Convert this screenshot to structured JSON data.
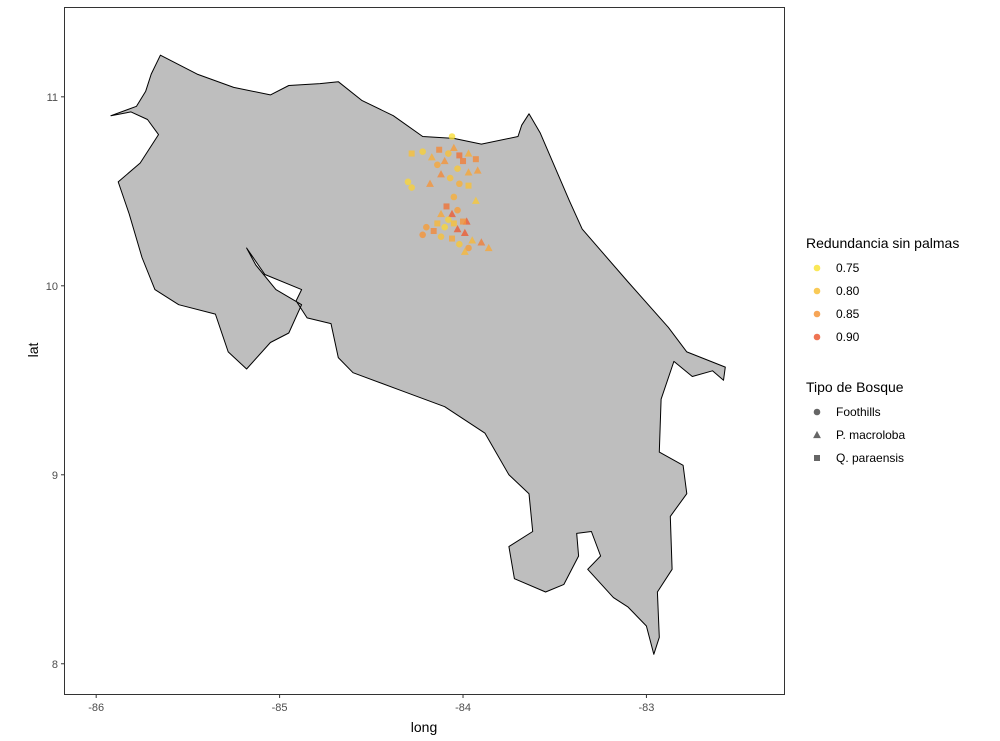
{
  "chart_data": {
    "type": "scatter",
    "xlabel": "long",
    "ylabel": "lat",
    "xlim": [
      -86.17,
      -82.25
    ],
    "ylim": [
      7.84,
      11.47
    ],
    "x_ticks": [
      -86,
      -85,
      -84,
      -83
    ],
    "x_tick_labels": [
      "-86",
      "-85",
      "-84",
      "-83"
    ],
    "y_ticks": [
      8,
      9,
      10,
      11
    ],
    "y_tick_labels": [
      "8",
      "9",
      "10",
      "11"
    ],
    "grid": false,
    "legend_position": "right",
    "map_fill": "#bebebe",
    "map_outline": "#000000",
    "map_outline_lonlat": [
      [
        -85.65,
        11.22
      ],
      [
        -85.45,
        11.12
      ],
      [
        -85.25,
        11.05
      ],
      [
        -85.05,
        11.01
      ],
      [
        -84.95,
        11.06
      ],
      [
        -84.78,
        11.07
      ],
      [
        -84.68,
        11.08
      ],
      [
        -84.55,
        10.98
      ],
      [
        -84.38,
        10.9
      ],
      [
        -84.22,
        10.79
      ],
      [
        -84.05,
        10.78
      ],
      [
        -83.9,
        10.75
      ],
      [
        -83.7,
        10.79
      ],
      [
        -83.68,
        10.85
      ],
      [
        -83.64,
        10.91
      ],
      [
        -83.58,
        10.81
      ],
      [
        -83.42,
        10.45
      ],
      [
        -83.35,
        10.3
      ],
      [
        -83.1,
        10.02
      ],
      [
        -82.88,
        9.78
      ],
      [
        -82.78,
        9.65
      ],
      [
        -82.57,
        9.57
      ],
      [
        -82.58,
        9.5
      ],
      [
        -82.64,
        9.55
      ],
      [
        -82.75,
        9.52
      ],
      [
        -82.85,
        9.6
      ],
      [
        -82.92,
        9.4
      ],
      [
        -82.93,
        9.12
      ],
      [
        -82.8,
        9.05
      ],
      [
        -82.78,
        8.9
      ],
      [
        -82.87,
        8.78
      ],
      [
        -82.86,
        8.5
      ],
      [
        -82.94,
        8.38
      ],
      [
        -82.93,
        8.14
      ],
      [
        -82.96,
        8.05
      ],
      [
        -83.0,
        8.2
      ],
      [
        -83.1,
        8.3
      ],
      [
        -83.18,
        8.35
      ],
      [
        -83.32,
        8.5
      ],
      [
        -83.25,
        8.57
      ],
      [
        -83.3,
        8.7
      ],
      [
        -83.38,
        8.69
      ],
      [
        -83.37,
        8.57
      ],
      [
        -83.45,
        8.42
      ],
      [
        -83.55,
        8.38
      ],
      [
        -83.72,
        8.45
      ],
      [
        -83.75,
        8.62
      ],
      [
        -83.62,
        8.7
      ],
      [
        -83.64,
        8.9
      ],
      [
        -83.75,
        9.0
      ],
      [
        -83.88,
        9.22
      ],
      [
        -84.1,
        9.36
      ],
      [
        -84.35,
        9.45
      ],
      [
        -84.6,
        9.54
      ],
      [
        -84.68,
        9.62
      ],
      [
        -84.72,
        9.8
      ],
      [
        -84.85,
        9.83
      ],
      [
        -84.91,
        9.92
      ],
      [
        -84.88,
        9.98
      ],
      [
        -85.08,
        10.06
      ],
      [
        -85.18,
        10.2
      ],
      [
        -85.13,
        10.11
      ],
      [
        -85.02,
        9.98
      ],
      [
        -84.88,
        9.9
      ],
      [
        -84.95,
        9.75
      ],
      [
        -85.05,
        9.7
      ],
      [
        -85.18,
        9.56
      ],
      [
        -85.28,
        9.65
      ],
      [
        -85.35,
        9.85
      ],
      [
        -85.55,
        9.9
      ],
      [
        -85.68,
        9.98
      ],
      [
        -85.75,
        10.15
      ],
      [
        -85.82,
        10.38
      ],
      [
        -85.88,
        10.55
      ],
      [
        -85.76,
        10.65
      ],
      [
        -85.66,
        10.8
      ],
      [
        -85.72,
        10.88
      ],
      [
        -85.81,
        10.92
      ],
      [
        -85.92,
        10.9
      ],
      [
        -85.78,
        10.95
      ],
      [
        -85.73,
        11.03
      ],
      [
        -85.7,
        11.12
      ],
      [
        -85.65,
        11.22
      ]
    ],
    "legend_color": {
      "title": "Redundancia sin palmas",
      "entries": [
        {
          "label": "0.75",
          "value": 0.75,
          "color": "#f9e43a"
        },
        {
          "label": "0.80",
          "value": 0.8,
          "color": "#f8c13a"
        },
        {
          "label": "0.85",
          "value": 0.85,
          "color": "#f5953a"
        },
        {
          "label": "0.90",
          "value": 0.9,
          "color": "#ec5c35"
        }
      ]
    },
    "legend_shape": {
      "title": "Tipo de Bosque",
      "entries": [
        {
          "label": "Foothills",
          "shape": "circle"
        },
        {
          "label": "P. macroloba",
          "shape": "triangle"
        },
        {
          "label": "Q. paraensis",
          "shape": "square"
        }
      ]
    },
    "points": [
      {
        "x": -84.28,
        "y": 10.7,
        "value": 0.8,
        "shape": "square"
      },
      {
        "x": -84.22,
        "y": 10.71,
        "value": 0.78,
        "shape": "circle"
      },
      {
        "x": -84.17,
        "y": 10.68,
        "value": 0.82,
        "shape": "triangle"
      },
      {
        "x": -84.13,
        "y": 10.72,
        "value": 0.86,
        "shape": "square"
      },
      {
        "x": -84.08,
        "y": 10.7,
        "value": 0.8,
        "shape": "circle"
      },
      {
        "x": -84.05,
        "y": 10.73,
        "value": 0.84,
        "shape": "triangle"
      },
      {
        "x": -84.02,
        "y": 10.69,
        "value": 0.88,
        "shape": "square"
      },
      {
        "x": -84.06,
        "y": 10.79,
        "value": 0.76,
        "shape": "circle"
      },
      {
        "x": -84.1,
        "y": 10.66,
        "value": 0.85,
        "shape": "triangle"
      },
      {
        "x": -84.0,
        "y": 10.66,
        "value": 0.87,
        "shape": "square"
      },
      {
        "x": -84.14,
        "y": 10.64,
        "value": 0.83,
        "shape": "circle"
      },
      {
        "x": -83.97,
        "y": 10.7,
        "value": 0.82,
        "shape": "triangle"
      },
      {
        "x": -83.93,
        "y": 10.67,
        "value": 0.86,
        "shape": "square"
      },
      {
        "x": -84.03,
        "y": 10.62,
        "value": 0.79,
        "shape": "circle"
      },
      {
        "x": -84.12,
        "y": 10.59,
        "value": 0.86,
        "shape": "triangle"
      },
      {
        "x": -83.97,
        "y": 10.6,
        "value": 0.83,
        "shape": "triangle"
      },
      {
        "x": -83.92,
        "y": 10.61,
        "value": 0.84,
        "shape": "triangle"
      },
      {
        "x": -84.07,
        "y": 10.57,
        "value": 0.8,
        "shape": "circle"
      },
      {
        "x": -84.18,
        "y": 10.54,
        "value": 0.85,
        "shape": "triangle"
      },
      {
        "x": -84.3,
        "y": 10.55,
        "value": 0.77,
        "shape": "circle"
      },
      {
        "x": -84.28,
        "y": 10.52,
        "value": 0.78,
        "shape": "circle"
      },
      {
        "x": -84.02,
        "y": 10.54,
        "value": 0.82,
        "shape": "circle"
      },
      {
        "x": -83.97,
        "y": 10.53,
        "value": 0.8,
        "shape": "square"
      },
      {
        "x": -84.05,
        "y": 10.47,
        "value": 0.82,
        "shape": "circle"
      },
      {
        "x": -83.93,
        "y": 10.45,
        "value": 0.79,
        "shape": "triangle"
      },
      {
        "x": -84.09,
        "y": 10.42,
        "value": 0.88,
        "shape": "square"
      },
      {
        "x": -84.06,
        "y": 10.38,
        "value": 0.91,
        "shape": "triangle"
      },
      {
        "x": -84.03,
        "y": 10.4,
        "value": 0.84,
        "shape": "circle"
      },
      {
        "x": -84.12,
        "y": 10.38,
        "value": 0.83,
        "shape": "triangle"
      },
      {
        "x": -84.08,
        "y": 10.35,
        "value": 0.78,
        "shape": "circle"
      },
      {
        "x": -84.14,
        "y": 10.33,
        "value": 0.81,
        "shape": "square"
      },
      {
        "x": -83.98,
        "y": 10.34,
        "value": 0.92,
        "shape": "triangle"
      },
      {
        "x": -84.2,
        "y": 10.31,
        "value": 0.84,
        "shape": "circle"
      },
      {
        "x": -84.16,
        "y": 10.29,
        "value": 0.86,
        "shape": "square"
      },
      {
        "x": -84.1,
        "y": 10.31,
        "value": 0.77,
        "shape": "circle"
      },
      {
        "x": -84.03,
        "y": 10.3,
        "value": 0.93,
        "shape": "triangle"
      },
      {
        "x": -83.99,
        "y": 10.28,
        "value": 0.9,
        "shape": "triangle"
      },
      {
        "x": -84.22,
        "y": 10.27,
        "value": 0.85,
        "shape": "circle"
      },
      {
        "x": -84.12,
        "y": 10.26,
        "value": 0.8,
        "shape": "circle"
      },
      {
        "x": -84.06,
        "y": 10.25,
        "value": 0.83,
        "shape": "square"
      },
      {
        "x": -83.95,
        "y": 10.24,
        "value": 0.81,
        "shape": "triangle"
      },
      {
        "x": -83.9,
        "y": 10.23,
        "value": 0.87,
        "shape": "triangle"
      },
      {
        "x": -84.02,
        "y": 10.22,
        "value": 0.79,
        "shape": "circle"
      },
      {
        "x": -83.97,
        "y": 10.2,
        "value": 0.84,
        "shape": "circle"
      },
      {
        "x": -83.86,
        "y": 10.2,
        "value": 0.83,
        "shape": "triangle"
      },
      {
        "x": -83.99,
        "y": 10.18,
        "value": 0.81,
        "shape": "triangle"
      },
      {
        "x": -84.0,
        "y": 10.34,
        "value": 0.85,
        "shape": "square"
      },
      {
        "x": -84.05,
        "y": 10.33,
        "value": 0.8,
        "shape": "square"
      }
    ]
  }
}
